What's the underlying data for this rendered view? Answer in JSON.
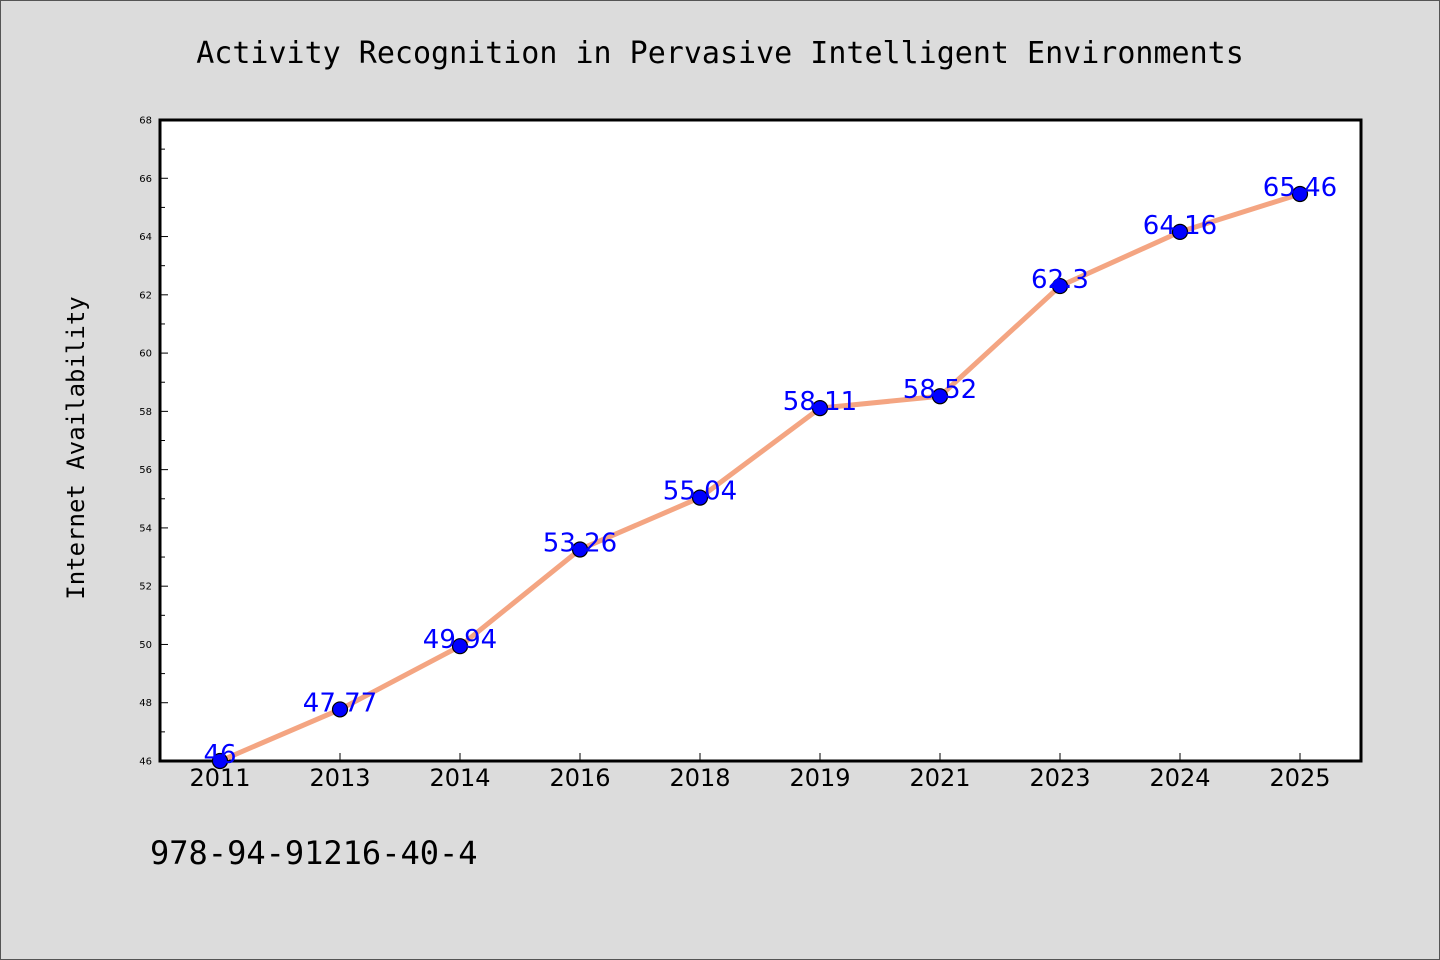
{
  "chart_data": {
    "type": "line",
    "title": "Activity Recognition in Pervasive Intelligent Environments",
    "xlabel": "",
    "ylabel": "Internet Availability",
    "categories": [
      "2011",
      "2013",
      "2014",
      "2016",
      "2018",
      "2019",
      "2021",
      "2023",
      "2024",
      "2025"
    ],
    "series": [
      {
        "values": [
          46,
          47.77,
          49.94,
          53.26,
          55.04,
          58.11,
          58.52,
          62.3,
          64.16,
          65.46
        ],
        "data_labels": [
          "46",
          "47.77",
          "49.94",
          "53.26",
          "55.04",
          "58.11",
          "58.52",
          "62.3",
          "64.16",
          "65.46"
        ]
      }
    ],
    "ylim": [
      46,
      68
    ],
    "yticks": [
      "46",
      "48",
      "50",
      "52",
      "54",
      "56",
      "58",
      "60",
      "62",
      "64",
      "66",
      "68"
    ],
    "grid": false,
    "legend": "none",
    "colors": {
      "line": "#f4a582",
      "marker": "#0000ff",
      "marker_edge": "#000000",
      "data_label": "#0000ff",
      "background": "#dcdcdc",
      "plot_background": "#ffffff"
    }
  },
  "footer": {
    "isbn": "978-94-91216-40-4"
  }
}
